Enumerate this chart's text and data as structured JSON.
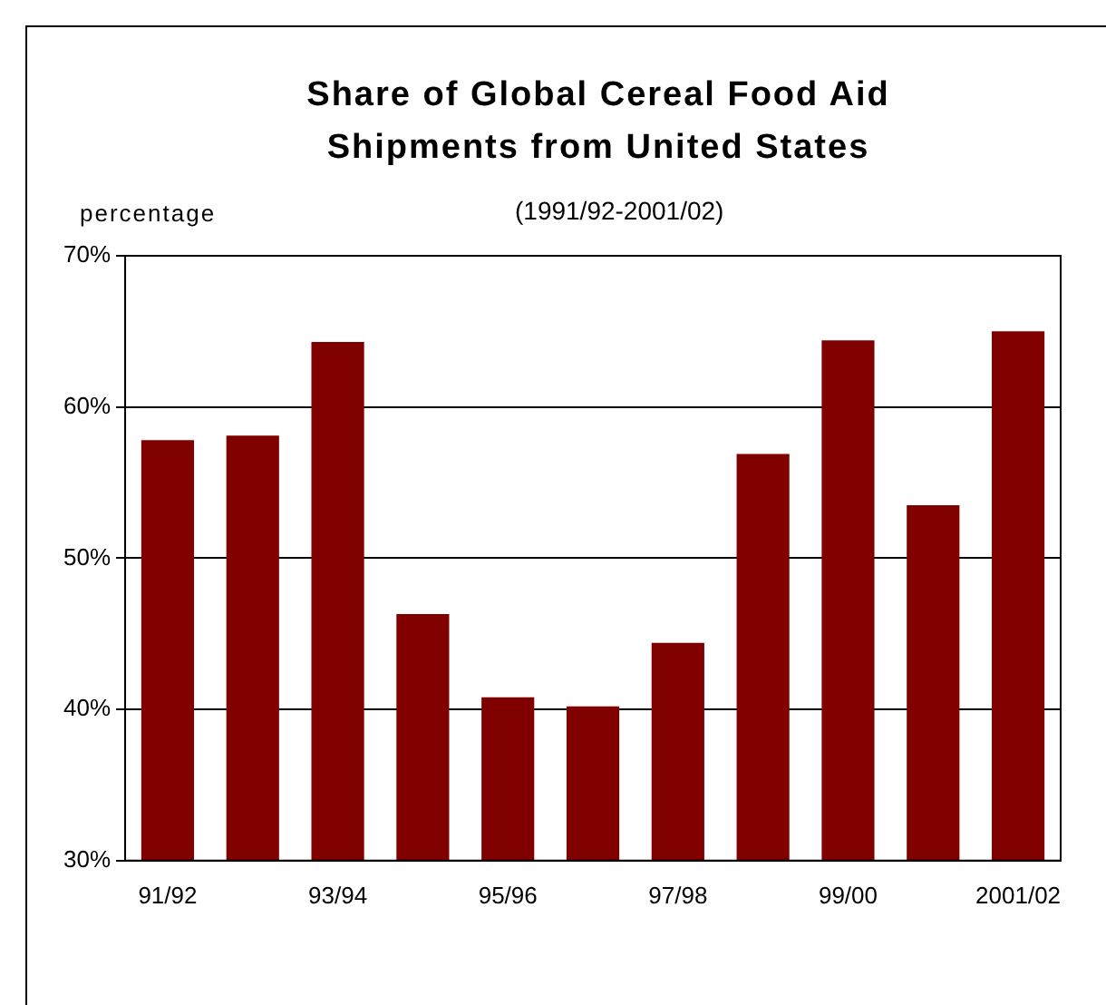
{
  "chart_data": {
    "type": "bar",
    "title": "Share of Global Cereal Food Aid Shipments from United States",
    "subtitle": "(1991/92-2001/02)",
    "ylabel": "percentage",
    "categories": [
      "91/92",
      null,
      "93/94",
      null,
      "95/96",
      null,
      "97/98",
      null,
      "99/00",
      null,
      "2001/02"
    ],
    "values": [
      57.8,
      58.1,
      64.3,
      46.3,
      40.8,
      40.2,
      44.4,
      56.9,
      64.4,
      53.5,
      65.0
    ],
    "color": "#800000",
    "ylim": [
      30,
      70
    ],
    "yticks": [
      {
        "value": 30,
        "label": "30%"
      },
      {
        "value": 40,
        "label": "40%"
      },
      {
        "value": 50,
        "label": "50%"
      },
      {
        "value": 60,
        "label": "60%"
      },
      {
        "value": 70,
        "label": "70%"
      }
    ],
    "grid": "y",
    "legend": false
  }
}
